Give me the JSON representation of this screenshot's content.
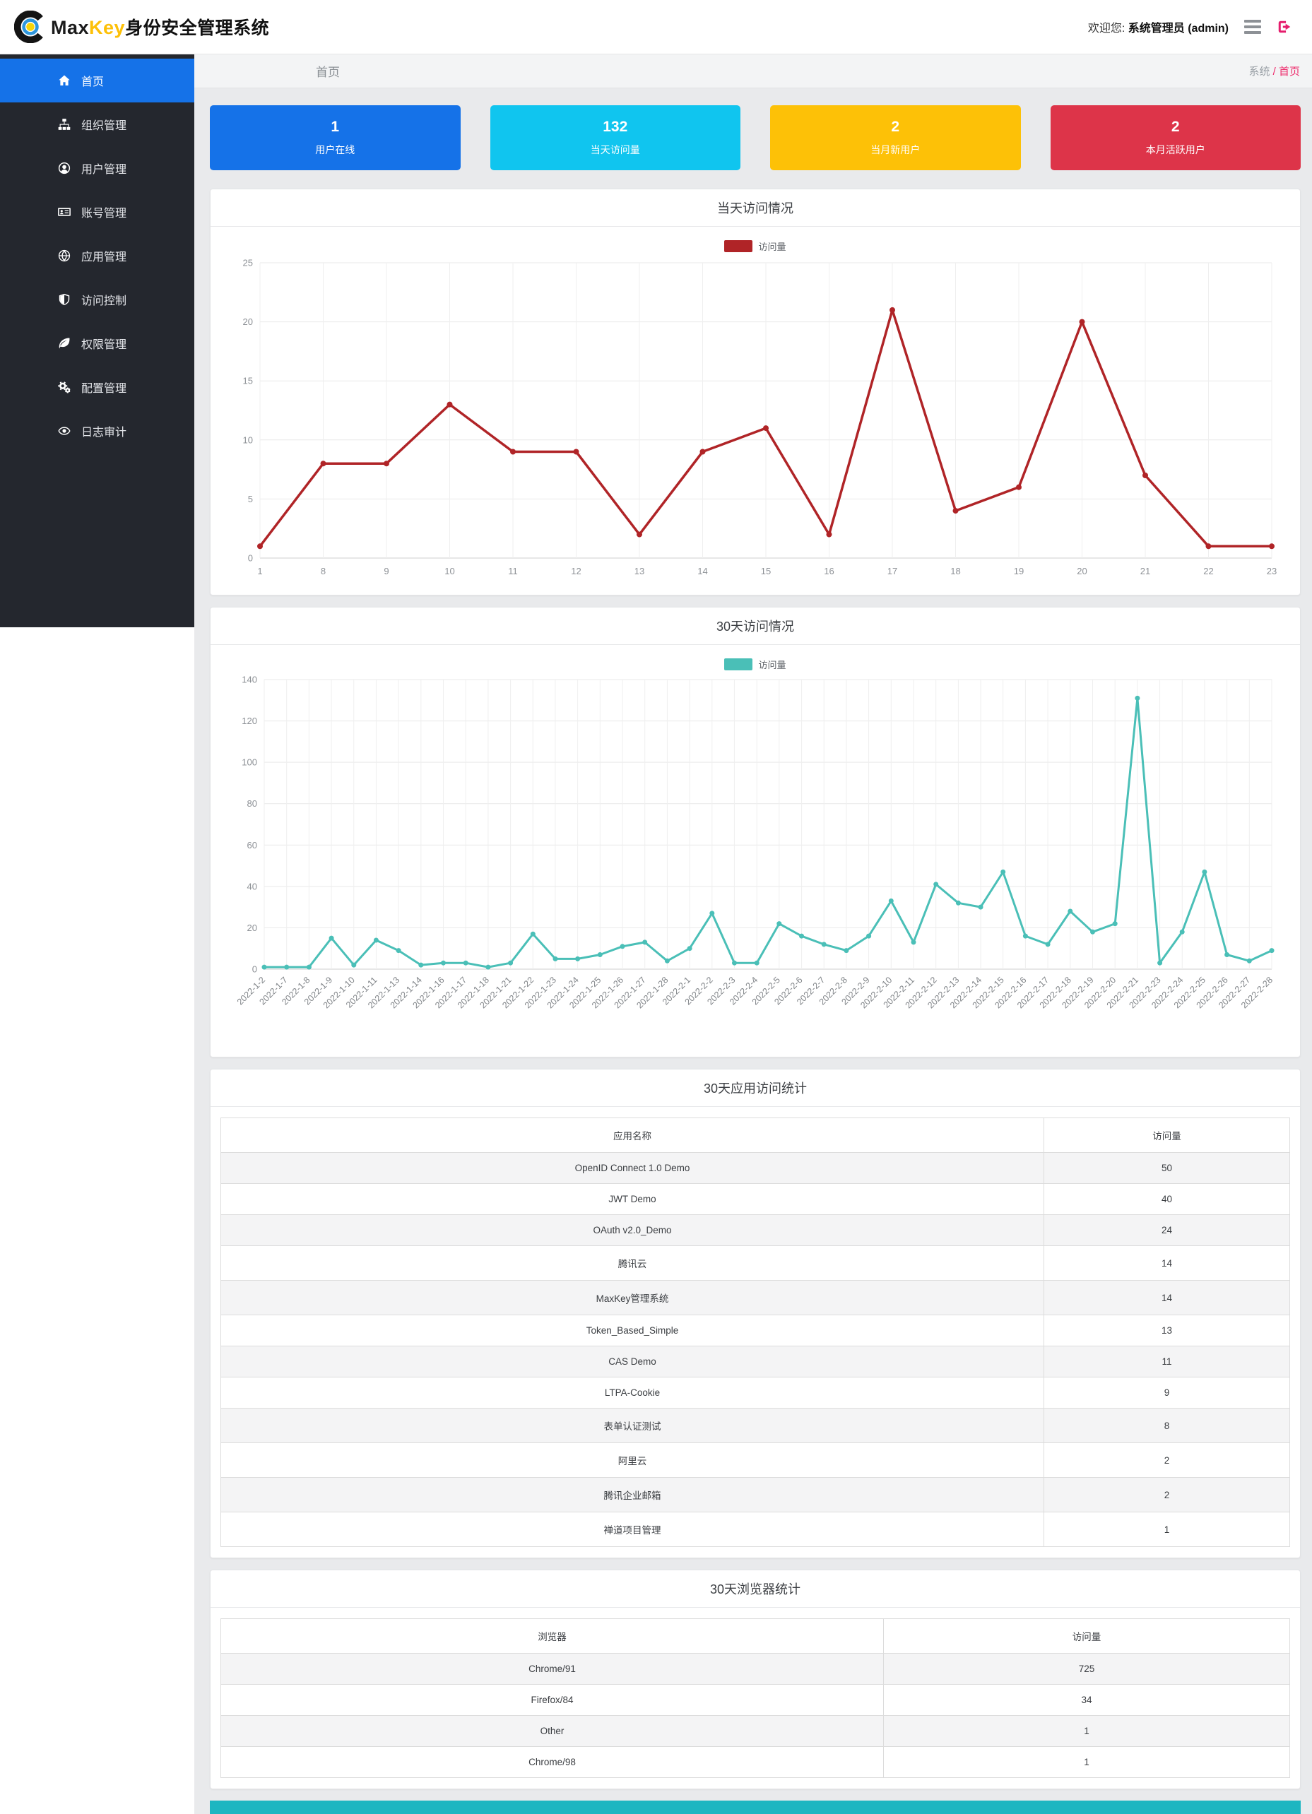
{
  "topbar": {
    "brand": {
      "max": "Max",
      "key": "Key",
      "suffix": "身份安全管理系统"
    },
    "welcome_prefix": "欢迎您:",
    "welcome_user": "系统管理员 (admin)"
  },
  "sidebar": {
    "items": [
      {
        "label": "首页",
        "icon": "home-icon",
        "active": true
      },
      {
        "label": "组织管理",
        "icon": "sitemap-icon",
        "active": false
      },
      {
        "label": "用户管理",
        "icon": "user-circle-icon",
        "active": false
      },
      {
        "label": "账号管理",
        "icon": "id-card-icon",
        "active": false
      },
      {
        "label": "应用管理",
        "icon": "globe-icon",
        "active": false
      },
      {
        "label": "访问控制",
        "icon": "shield-icon",
        "active": false
      },
      {
        "label": "权限管理",
        "icon": "leaf-icon",
        "active": false
      },
      {
        "label": "配置管理",
        "icon": "cogs-icon",
        "active": false
      },
      {
        "label": "日志审计",
        "icon": "eye-icon",
        "active": false
      }
    ]
  },
  "page_header": {
    "title": "首页",
    "breadcrumb_section": "系统",
    "breadcrumb_sep": " / ",
    "breadcrumb_current": "首页"
  },
  "stat_cards": [
    {
      "value": "1",
      "label": "用户在线",
      "color": "#1572e8"
    },
    {
      "value": "132",
      "label": "当天访问量",
      "color": "#10c5ef"
    },
    {
      "value": "2",
      "label": "当月新用户",
      "color": "#fdc107"
    },
    {
      "value": "2",
      "label": "本月活跃用户",
      "color": "#dd3449"
    }
  ],
  "chart_data": [
    {
      "type": "line",
      "title": "当天访问情况",
      "legend": "访问量",
      "color": "#b02427",
      "categories": [
        "1",
        "8",
        "9",
        "10",
        "11",
        "12",
        "13",
        "14",
        "15",
        "16",
        "17",
        "18",
        "19",
        "20",
        "21",
        "22",
        "23"
      ],
      "values": [
        1,
        8,
        8,
        13,
        9,
        9,
        2,
        9,
        11,
        2,
        21,
        4,
        6,
        20,
        7,
        1,
        1
      ],
      "xlabel": "",
      "ylabel": "",
      "ylim": [
        0,
        25
      ],
      "ystep": 5,
      "yticks": [
        "0",
        "5",
        "10",
        "15",
        "20",
        "25"
      ],
      "grid": true,
      "legend_position": "top-center",
      "x_label_rotate": 0
    },
    {
      "type": "line",
      "title": "30天访问情况",
      "legend": "访问量",
      "color": "#4abfb7",
      "categories": [
        "2022-1-2",
        "2022-1-7",
        "2022-1-8",
        "2022-1-9",
        "2022-1-10",
        "2022-1-11",
        "2022-1-13",
        "2022-1-14",
        "2022-1-16",
        "2022-1-17",
        "2022-1-18",
        "2022-1-21",
        "2022-1-22",
        "2022-1-23",
        "2022-1-24",
        "2022-1-25",
        "2022-1-26",
        "2022-1-27",
        "2022-1-28",
        "2022-2-1",
        "2022-2-2",
        "2022-2-3",
        "2022-2-4",
        "2022-2-5",
        "2022-2-6",
        "2022-2-7",
        "2022-2-8",
        "2022-2-9",
        "2022-2-10",
        "2022-2-11",
        "2022-2-12",
        "2022-2-13",
        "2022-2-14",
        "2022-2-15",
        "2022-2-16",
        "2022-2-17",
        "2022-2-18",
        "2022-2-19",
        "2022-2-20",
        "2022-2-21",
        "2022-2-23",
        "2022-2-24",
        "2022-2-25",
        "2022-2-26",
        "2022-2-27",
        "2022-2-28"
      ],
      "values": [
        1,
        1,
        1,
        15,
        2,
        14,
        9,
        2,
        3,
        3,
        1,
        3,
        17,
        5,
        5,
        7,
        11,
        13,
        4,
        10,
        27,
        3,
        3,
        22,
        16,
        12,
        9,
        16,
        33,
        13,
        41,
        32,
        30,
        47,
        16,
        12,
        28,
        18,
        22,
        131,
        3,
        18,
        47,
        7,
        4,
        9
      ],
      "xlabel": "",
      "ylabel": "",
      "ylim": [
        0,
        140
      ],
      "ystep": 20,
      "yticks": [
        "0",
        "20",
        "40",
        "60",
        "80",
        "100",
        "120",
        "140"
      ],
      "grid": true,
      "legend_position": "top-center",
      "x_label_rotate": 45
    }
  ],
  "tables": [
    {
      "title": "30天应用访问统计",
      "headers": [
        "应用名称",
        "访问量"
      ],
      "first_col_width": "77%",
      "rows": [
        [
          "OpenID Connect 1.0 Demo",
          "50"
        ],
        [
          "JWT Demo",
          "40"
        ],
        [
          "OAuth v2.0_Demo",
          "24"
        ],
        [
          "腾讯云",
          "14"
        ],
        [
          "MaxKey管理系统",
          "14"
        ],
        [
          "Token_Based_Simple",
          "13"
        ],
        [
          "CAS Demo",
          "11"
        ],
        [
          "LTPA-Cookie",
          "9"
        ],
        [
          "表单认证测试",
          "8"
        ],
        [
          "阿里云",
          "2"
        ],
        [
          "腾讯企业邮箱",
          "2"
        ],
        [
          "禅道项目管理",
          "1"
        ]
      ]
    },
    {
      "title": "30天浏览器统计",
      "headers": [
        "浏览器",
        "访问量"
      ],
      "first_col_width": "62%",
      "rows": [
        [
          "Chrome/91",
          "725"
        ],
        [
          "Firefox/84",
          "34"
        ],
        [
          "Other",
          "1"
        ],
        [
          "Chrome/98",
          "1"
        ]
      ]
    }
  ],
  "footer_bar_color": "#1db6c1"
}
